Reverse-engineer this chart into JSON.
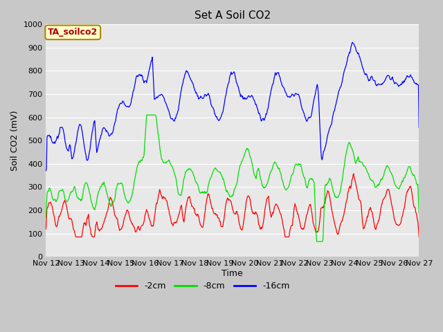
{
  "title": "Set A Soil CO2",
  "ylabel": "Soil CO2 (mV)",
  "xlabel": "Time",
  "legend_label": "TA_soilco2",
  "ylim": [
    0,
    1000
  ],
  "x_tick_labels": [
    "Nov 12",
    "Nov 13",
    "Nov 14",
    "Nov 15",
    "Nov 16",
    "Nov 17",
    "Nov 18",
    "Nov 19",
    "Nov 20",
    "Nov 21",
    "Nov 22",
    "Nov 23",
    "Nov 24",
    "Nov 25",
    "Nov 26",
    "Nov 27"
  ],
  "line_colors": [
    "#ff0000",
    "#00dd00",
    "#0000ff"
  ],
  "line_labels": [
    "-2cm",
    "-8cm",
    "-16cm"
  ],
  "fig_bg_color": "#c8c8c8",
  "plot_bg_color": "#e8e8e8",
  "title_fontsize": 11,
  "legend_box_color": "#ffffcc",
  "legend_box_edge": "#aa8800",
  "legend_text_color": "#aa0000",
  "grid_color": "#ffffff",
  "tick_fontsize": 8,
  "axis_label_fontsize": 9
}
